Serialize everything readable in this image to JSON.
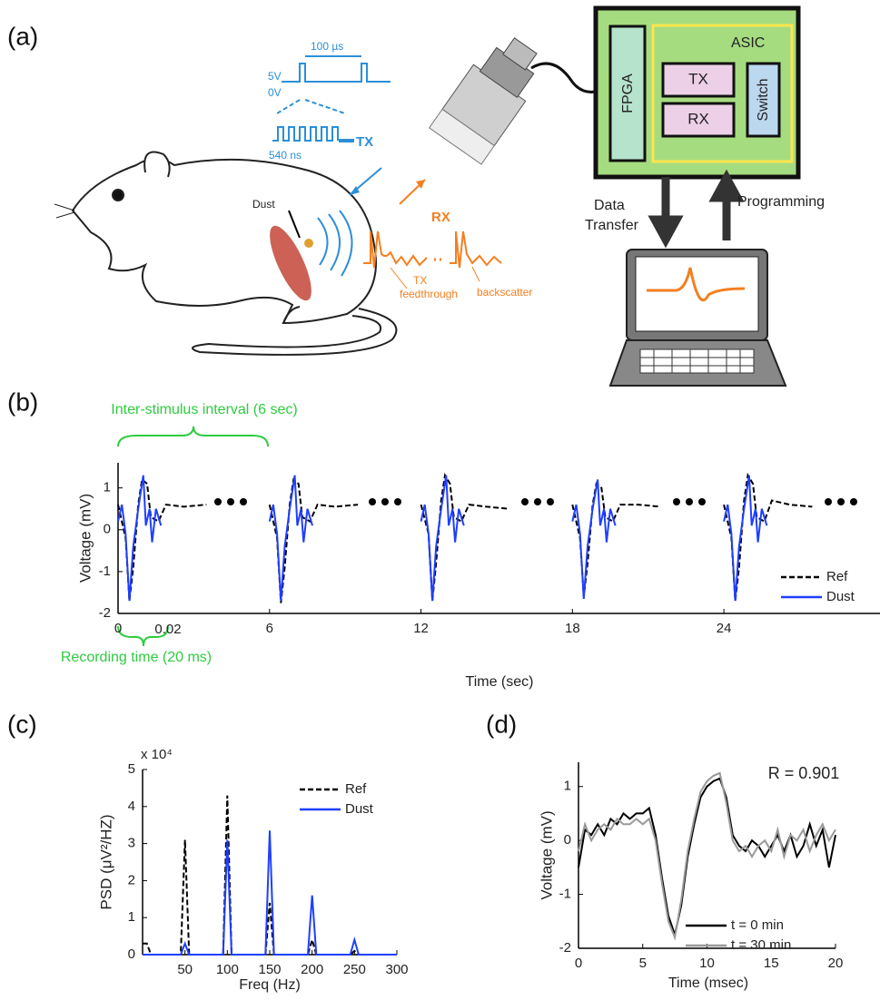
{
  "diagram": {
    "panel_label": "(a)",
    "pulse_high": "5V",
    "pulse_low": "0V",
    "period": "100 µs",
    "pulse_width": "540 ns",
    "tx": "TX",
    "dust": "Dust",
    "rx": "RX",
    "tx_feedthrough": [
      "TX",
      "feedthrough"
    ],
    "backscatter": "backscatter",
    "fpga": "FPGA",
    "asic": "ASIC",
    "asic_tx": "TX",
    "asic_rx": "RX",
    "switch": "Switch",
    "data_transfer": [
      "Data",
      "Transfer"
    ],
    "programming": "Programming"
  },
  "chart_data": [
    {
      "type": "line",
      "label": "(b)",
      "xlabel": "Time (sec)",
      "ylabel": "Voltage (mV)",
      "xlim": [
        0,
        30.4
      ],
      "ylim": [
        -2,
        1.6
      ],
      "xticks": [
        0,
        6,
        12,
        18,
        24
      ],
      "yticks": [
        -2,
        -1,
        0,
        1
      ],
      "legend": "lower right",
      "annotations": [
        "Inter-stimulus interval (6 sec)",
        "Recording time (20 ms)",
        "0.02"
      ],
      "series": [
        {
          "name": "Ref",
          "color": "#000000",
          "line_style": "dashed",
          "x": [
            0,
            0.3,
            0.45,
            0.6,
            0.8,
            0.95,
            1.15,
            1.3,
            1.6,
            1.9,
            2.6,
            3.5,
            null,
            6,
            6.3,
            6.45,
            6.6,
            6.8,
            6.95,
            7.15,
            7.3,
            7.6,
            7.9,
            8.6,
            9.5,
            null,
            12,
            12.3,
            12.45,
            12.6,
            12.8,
            12.95,
            13.15,
            13.3,
            13.6,
            13.9,
            14.6,
            15.5,
            null,
            18,
            18.3,
            18.45,
            18.6,
            18.8,
            18.95,
            19.15,
            19.3,
            19.6,
            19.9,
            20.6,
            21.5,
            null,
            24,
            24.3,
            24.45,
            24.6,
            24.8,
            24.95,
            25.15,
            25.3,
            25.6,
            25.9,
            26.6,
            27.5
          ],
          "values": [
            0.6,
            -0.2,
            -1.7,
            -0.9,
            0.6,
            1.2,
            1.1,
            0.3,
            0.2,
            0.6,
            0.55,
            0.6,
            null,
            0.6,
            -0.2,
            -1.75,
            -0.9,
            0.6,
            1.2,
            1.1,
            0.3,
            0.2,
            0.6,
            0.55,
            0.6,
            null,
            0.6,
            -0.1,
            -1.7,
            -0.8,
            0.7,
            1.3,
            1.1,
            0.3,
            0.2,
            0.6,
            0.55,
            0.5,
            null,
            0.6,
            -0.2,
            -1.6,
            -0.8,
            0.6,
            1.1,
            1.0,
            0.3,
            0.2,
            0.6,
            0.6,
            0.55,
            null,
            0.6,
            -0.2,
            -1.7,
            -0.9,
            0.7,
            1.3,
            1.1,
            0.3,
            0.2,
            0.7,
            0.6,
            0.55
          ]
        },
        {
          "name": "Dust",
          "color": "#1f3fff",
          "line_style": "solid",
          "x": [
            0,
            0.15,
            0.3,
            0.45,
            0.6,
            0.8,
            1.0,
            1.1,
            1.25,
            1.35,
            1.5,
            1.7,
            null,
            6,
            6.15,
            6.3,
            6.45,
            6.6,
            6.8,
            7.0,
            7.1,
            7.25,
            7.35,
            7.5,
            7.7,
            null,
            12,
            12.15,
            12.3,
            12.45,
            12.6,
            12.8,
            13.0,
            13.1,
            13.25,
            13.35,
            13.5,
            13.7,
            null,
            18,
            18.15,
            18.3,
            18.45,
            18.6,
            18.8,
            19.0,
            19.1,
            19.25,
            19.35,
            19.5,
            19.7,
            null,
            24,
            24.15,
            24.3,
            24.45,
            24.6,
            24.8,
            25.0,
            25.1,
            25.25,
            25.35,
            25.5,
            25.7
          ],
          "values": [
            0.2,
            0.6,
            -0.1,
            -1.7,
            -0.4,
            0.5,
            1.3,
            0.1,
            0.5,
            -0.3,
            0.5,
            0.1,
            null,
            0.2,
            0.6,
            -0.1,
            -1.7,
            -0.4,
            0.5,
            1.3,
            0.1,
            0.5,
            -0.3,
            0.5,
            0.1,
            null,
            0.2,
            0.6,
            -0.1,
            -1.7,
            -0.4,
            0.5,
            1.3,
            0.1,
            0.5,
            -0.3,
            0.5,
            0.1,
            null,
            0.2,
            0.6,
            -0.1,
            -1.65,
            -0.4,
            0.5,
            1.2,
            0.1,
            0.5,
            -0.3,
            0.5,
            0.1,
            null,
            0.2,
            0.6,
            -0.1,
            -1.7,
            -0.4,
            0.5,
            1.3,
            0.1,
            0.5,
            -0.3,
            0.5,
            0.1
          ]
        }
      ]
    },
    {
      "type": "line",
      "label": "(c)",
      "xlabel": "Freq (Hz)",
      "ylabel": "PSD (μV²/HZ)",
      "xlim": [
        0,
        300
      ],
      "ylim": [
        0,
        5
      ],
      "xticks": [
        50,
        100,
        150,
        200,
        250,
        300
      ],
      "yticks": [
        0,
        1,
        2,
        3,
        4,
        5
      ],
      "legend": "upper right",
      "annotations": [
        "x 10⁴"
      ],
      "series": [
        {
          "name": "Ref",
          "color": "#000000",
          "line_style": "dashed",
          "x": [
            0,
            5,
            10,
            45,
            50,
            55,
            95,
            100,
            105,
            145,
            150,
            155,
            195,
            200,
            205,
            245,
            250,
            255,
            300
          ],
          "values": [
            0.3,
            0.3,
            0,
            0,
            3.1,
            0,
            0,
            4.3,
            0,
            0,
            1.4,
            0,
            0,
            0.4,
            0,
            0,
            0.1,
            0,
            0
          ]
        },
        {
          "name": "Dust",
          "color": "#1f3fff",
          "line_style": "solid",
          "x": [
            0,
            5,
            10,
            45,
            50,
            55,
            95,
            100,
            105,
            145,
            150,
            155,
            195,
            200,
            205,
            245,
            250,
            255,
            300
          ],
          "values": [
            0,
            0,
            0,
            0,
            0.3,
            0,
            0,
            3.1,
            0,
            0,
            3.35,
            0,
            0,
            1.6,
            0,
            0,
            0.4,
            0,
            0
          ]
        }
      ]
    },
    {
      "type": "line",
      "label": "(d)",
      "xlabel": "Time (msec)",
      "ylabel": "Voltage (mV)",
      "xlim": [
        0,
        20
      ],
      "ylim": [
        -2,
        1.45
      ],
      "xticks": [
        0,
        5,
        10,
        15,
        20
      ],
      "yticks": [
        -2,
        -1,
        0,
        1
      ],
      "legend": "lower right",
      "annotations": [
        "R = 0.901"
      ],
      "x": [
        0,
        0.5,
        1,
        1.5,
        2,
        2.5,
        3,
        3.5,
        4,
        4.5,
        5,
        5.5,
        6,
        6.5,
        7,
        7.5,
        8,
        8.5,
        9,
        9.5,
        10,
        10.5,
        11,
        11.5,
        12,
        12.5,
        13,
        13.5,
        14,
        14.5,
        15,
        15.5,
        16,
        16.5,
        17,
        17.5,
        18,
        18.5,
        19,
        19.5,
        20
      ],
      "series": [
        {
          "name": "t = 0 min",
          "color": "#000000",
          "line_style": "solid",
          "values": [
            -0.5,
            0.2,
            0.1,
            0.3,
            0.1,
            0.4,
            0.3,
            0.5,
            0.4,
            0.5,
            0.5,
            0.6,
            0.1,
            -0.7,
            -1.4,
            -1.75,
            -1.2,
            -0.3,
            0.3,
            0.8,
            1.0,
            1.1,
            1.15,
            0.8,
            0.1,
            -0.1,
            -0.2,
            0,
            -0.1,
            -0.3,
            -0.1,
            0.1,
            -0.2,
            0.1,
            -0.3,
            -0.1,
            0.3,
            -0.1,
            0.2,
            -0.5,
            0.1
          ]
        },
        {
          "name": "t = 30 min",
          "color": "#999999",
          "line_style": "solid",
          "values": [
            -0.2,
            0.3,
            0.0,
            0.2,
            0.3,
            0.2,
            0.4,
            0.3,
            0.3,
            0.4,
            0.3,
            0.4,
            0.0,
            -0.8,
            -1.5,
            -1.8,
            -1.1,
            -0.2,
            0.4,
            0.9,
            1.1,
            1.2,
            1.25,
            0.7,
            0.0,
            -0.2,
            -0.1,
            -0.3,
            -0.1,
            0.0,
            -0.2,
            0.2,
            -0.3,
            0.1,
            0.0,
            0.2,
            -0.2,
            0.1,
            0.3,
            0.0,
            0.2
          ]
        }
      ]
    }
  ]
}
